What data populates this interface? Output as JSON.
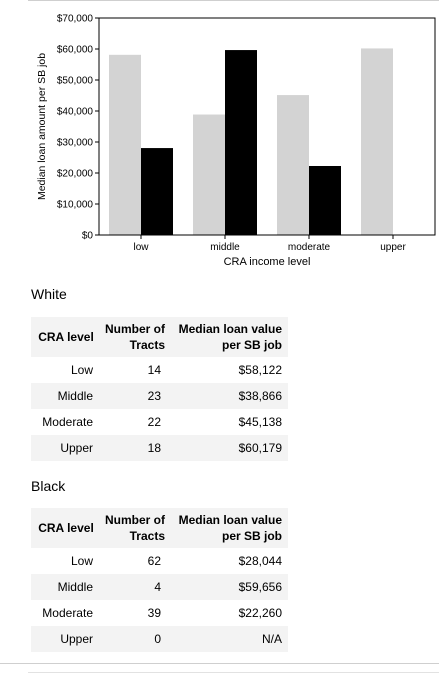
{
  "chart_data": {
    "type": "bar",
    "categories": [
      "low",
      "middle",
      "moderate",
      "upper"
    ],
    "series": [
      {
        "name": "",
        "color": "#d3d3d3",
        "values": [
          58122,
          38866,
          45138,
          60179
        ]
      },
      {
        "name": "",
        "color": "#000000",
        "values": [
          28044,
          59656,
          22260,
          null
        ]
      }
    ],
    "xlabel": "CRA income level",
    "ylabel": "Median loan amount per SB job",
    "ylim": [
      0,
      70000
    ],
    "yticks": [
      0,
      10000,
      20000,
      30000,
      40000,
      50000,
      60000,
      70000
    ],
    "ytick_labels": [
      "$0",
      "$10,000",
      "$20,000",
      "$30,000",
      "$40,000",
      "$50,000",
      "$60,000",
      "$70,000"
    ],
    "grid": false
  },
  "tables": [
    {
      "title": "White",
      "headers": [
        "CRA level",
        "Number of Tracts",
        "Median loan value per SB job"
      ],
      "rows": [
        [
          "Low",
          "14",
          "$58,122"
        ],
        [
          "Middle",
          "23",
          "$38,866"
        ],
        [
          "Moderate",
          "22",
          "$45,138"
        ],
        [
          "Upper",
          "18",
          "$60,179"
        ]
      ]
    },
    {
      "title": "Black",
      "headers": [
        "CRA level",
        "Number of Tracts",
        "Median loan value per SB job"
      ],
      "rows": [
        [
          "Low",
          "62",
          "$28,044"
        ],
        [
          "Middle",
          "4",
          "$59,656"
        ],
        [
          "Moderate",
          "39",
          "$22,260"
        ],
        [
          "Upper",
          "0",
          "N/A"
        ]
      ]
    }
  ]
}
